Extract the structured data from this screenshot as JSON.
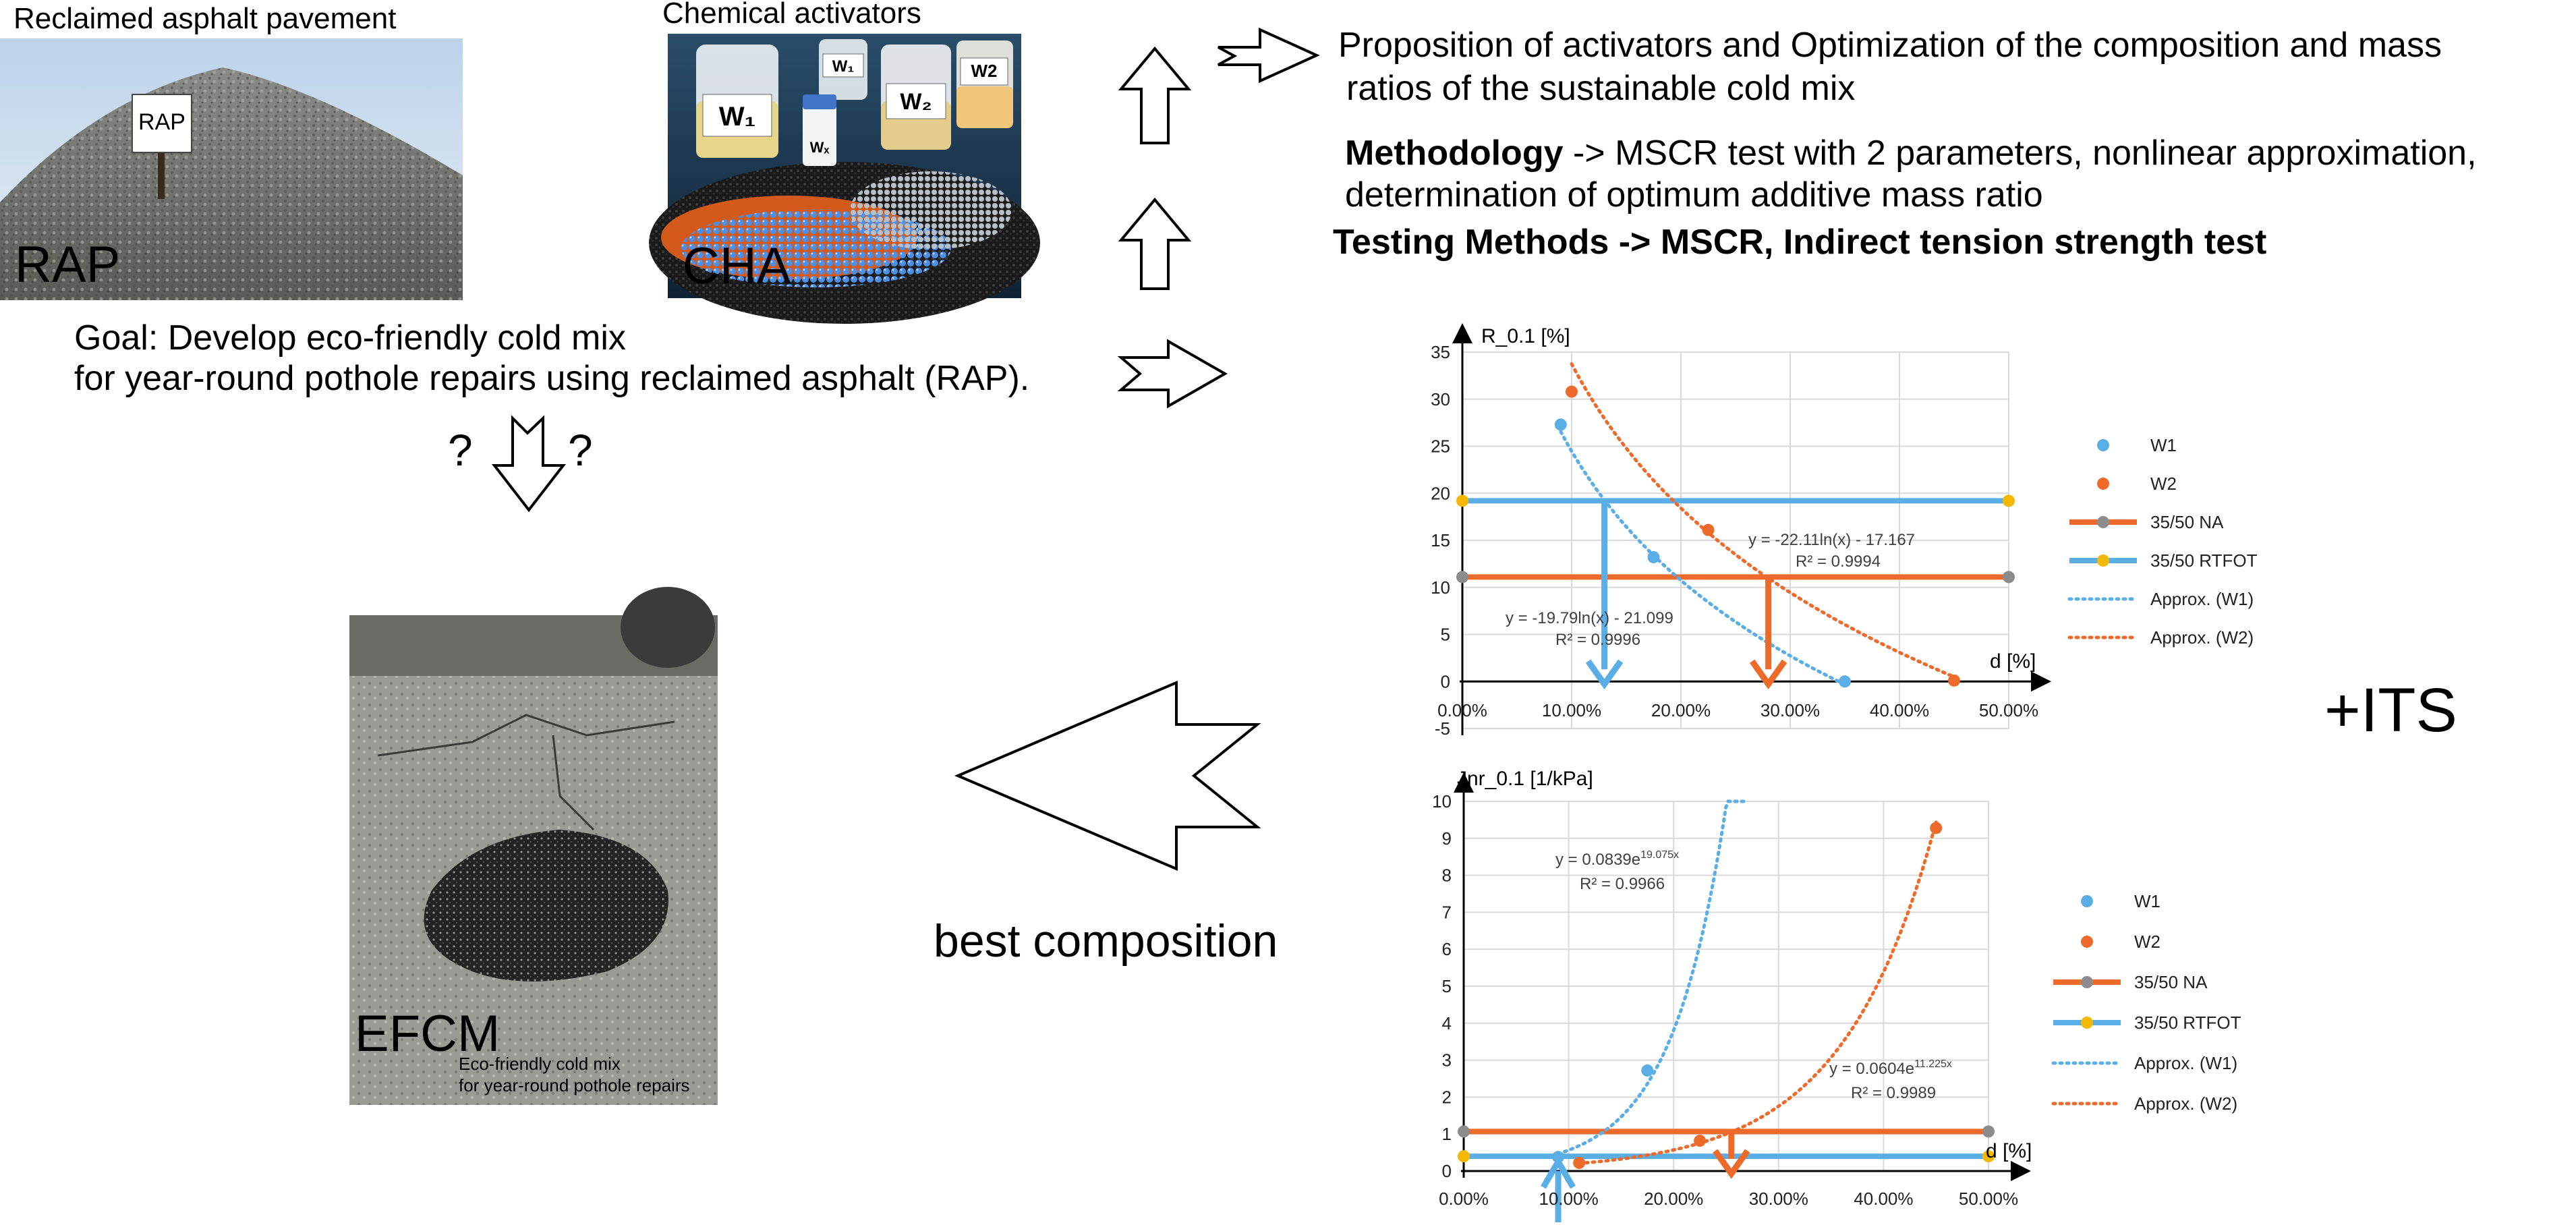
{
  "rap": {
    "caption": "Reclaimed asphalt pavement",
    "sign": "RAP",
    "label": "RAP"
  },
  "cha": {
    "caption": "Chemical activators",
    "label": "CHA",
    "bottle_w1": "W₁",
    "bottle_w2": "W₂",
    "bottle_w1_small": "W₁",
    "bottle_w2_small": "W2",
    "bottle_wx": "Wₓ"
  },
  "goal": {
    "line1": "Goal: Develop eco-friendly cold mix",
    "line2": "for year-round pothole repairs using reclaimed asphalt (RAP).",
    "q_left": "?",
    "q_right": "?"
  },
  "proposition": {
    "line1": "Proposition of activators and Optimization of the composition and mass",
    "line2": "ratios of the sustainable cold mix"
  },
  "methodology": {
    "bold": "Methodology",
    "rest1": " -> MSCR test with 2 parameters, nonlinear approximation,",
    "line2": "determination of optimum additive mass ratio"
  },
  "testing": "Testing Methods -> MSCR, Indirect tension strength test",
  "its": "+ITS",
  "best": "best composition",
  "efcm": {
    "label": "EFCM",
    "sub1": "Eco-friendly cold mix",
    "sub2": "for year-round pothole repairs"
  },
  "colors": {
    "w1": "#5aaee6",
    "w2": "#ee6a2a",
    "na": "#ee6a2a",
    "rtfot": "#5aaee6",
    "na_marker": "#8c8c8c",
    "rtfot_marker": "#f5b800"
  },
  "legend": {
    "w1": "W1",
    "w2": "W2",
    "na": "35/50 NA",
    "rtfot": "35/50 RTFOT",
    "aw1": "Approx. (W1)",
    "aw2": "Approx. (W2)"
  },
  "chart_data": [
    {
      "type": "scatter",
      "ylabel": "R_0.1 [%]",
      "xlabel": "d [%]",
      "xlim": [
        0,
        0.5
      ],
      "ylim": [
        -5,
        35
      ],
      "xticks": [
        "0.00%",
        "10.00%",
        "20.00%",
        "30.00%",
        "40.00%",
        "50.00%"
      ],
      "yticks": [
        "-5",
        "0",
        "5",
        "10",
        "15",
        "20",
        "25",
        "30",
        "35"
      ],
      "grid": true,
      "legend_position": "right",
      "series": [
        {
          "name": "W1",
          "x": [
            0.09,
            0.175,
            0.35
          ],
          "y": [
            27.3,
            13.2,
            0
          ]
        },
        {
          "name": "W2",
          "x": [
            0.1,
            0.225,
            0.45
          ],
          "y": [
            30.8,
            16.1,
            0.1
          ]
        },
        {
          "name": "35/50 NA",
          "x": [
            0,
            0.5
          ],
          "y": [
            11.1,
            11.1
          ]
        },
        {
          "name": "35/50 RTFOT",
          "x": [
            0,
            0.5
          ],
          "y": [
            19.2,
            19.2
          ]
        },
        {
          "name": "Approx. (W1)",
          "x": [
            0.09,
            0.35
          ],
          "formula": "y = -19.79ln(x) - 21.099"
        },
        {
          "name": "Approx. (W2)",
          "x": [
            0.1,
            0.45
          ],
          "formula": "y = -22.11ln(x) - 17.167"
        }
      ],
      "annotations": {
        "w1_eq": "y = -19.79ln(x) - 21.099",
        "w1_r2": "R² = 0.9996",
        "w2_eq": "y = -22.11ln(x) - 17.167",
        "w2_r2": "R² = 0.9994"
      },
      "optimum_markers": {
        "w1_x": 0.13,
        "w2_x": 0.28
      }
    },
    {
      "type": "scatter",
      "ylabel": "Jnr_0.1 [1/kPa]",
      "xlabel": "d [%]",
      "xlim": [
        0,
        0.5
      ],
      "ylim": [
        0,
        10
      ],
      "xticks": [
        "0.00%",
        "10.00%",
        "20.00%",
        "30.00%",
        "40.00%",
        "50.00%"
      ],
      "yticks": [
        "0",
        "1",
        "2",
        "3",
        "4",
        "5",
        "6",
        "7",
        "8",
        "9",
        "10"
      ],
      "grid": true,
      "legend_position": "right",
      "series": [
        {
          "name": "W1",
          "x": [
            0.09,
            0.175
          ],
          "y": [
            0.38,
            2.72
          ]
        },
        {
          "name": "W2",
          "x": [
            0.11,
            0.225,
            0.45
          ],
          "y": [
            0.22,
            0.82,
            9.28
          ]
        },
        {
          "name": "35/50 NA",
          "x": [
            0,
            0.5
          ],
          "y": [
            1.07,
            1.07
          ]
        },
        {
          "name": "35/50 RTFOT",
          "x": [
            0,
            0.5
          ],
          "y": [
            0.4,
            0.4
          ]
        },
        {
          "name": "Approx. (W1)",
          "x": [
            0.09,
            0.27
          ],
          "formula": "y = 0.0839e^19.075x"
        },
        {
          "name": "Approx. (W2)",
          "x": [
            0.11,
            0.45
          ],
          "formula": "y = 0.0604e^11.225x"
        }
      ],
      "annotations": {
        "w1_eq_base": "y = 0.0839e",
        "w1_eq_exp": "19.075x",
        "w1_r2": "R² = 0.9966",
        "w2_eq_base": "y = 0.0604e",
        "w2_eq_exp": "11.225x",
        "w2_r2": "R² = 0.9989"
      },
      "optimum_markers": {
        "w1_x": 0.09,
        "w2_x": 0.255
      }
    }
  ]
}
